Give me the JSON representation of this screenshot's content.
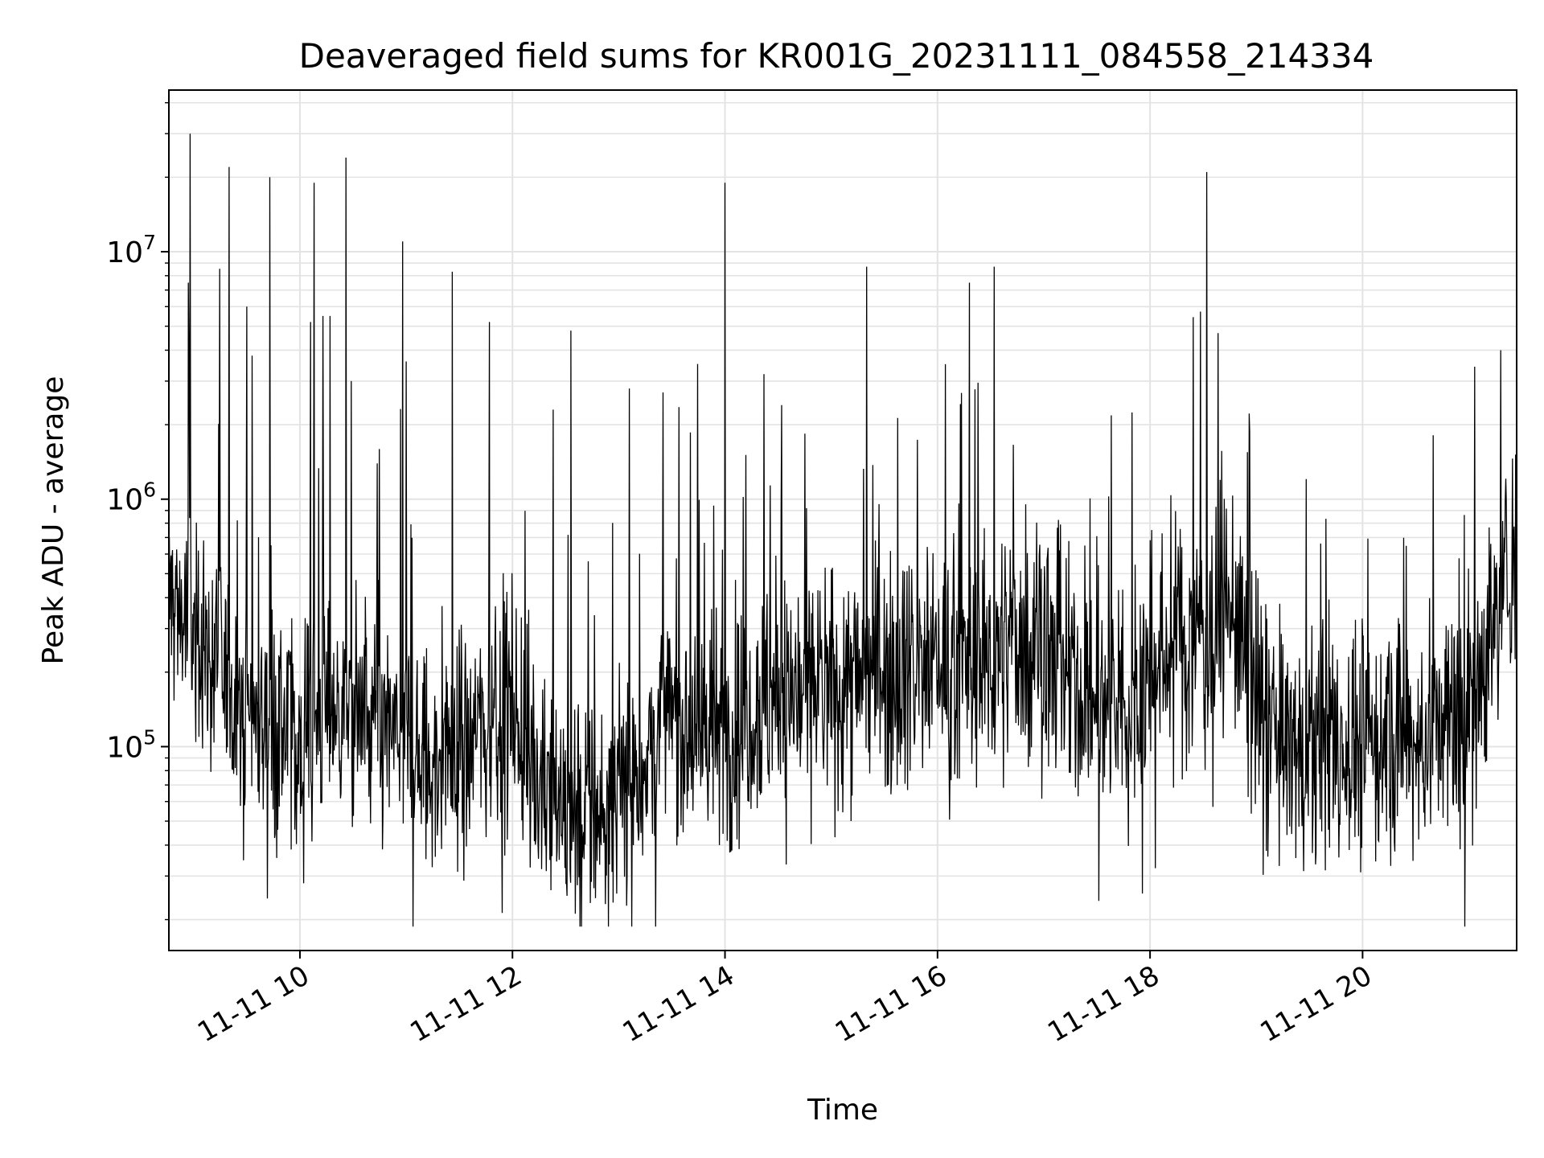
{
  "chart_data": {
    "type": "line",
    "title": "Deaveraged field sums for KR001G_20231111_084558_214334",
    "xlabel": "Time",
    "ylabel": "Peak ADU - average",
    "yscale": "log",
    "ylim": [
      15000,
      45000000
    ],
    "xlim": [
      "2023-11-11 08:46",
      "2023-11-11 21:27"
    ],
    "grid": true,
    "line_color": "#000000",
    "x_ticks": [
      {
        "value": "2023-11-11 10:00",
        "label": "11-11 10"
      },
      {
        "value": "2023-11-11 12:00",
        "label": "11-11 12"
      },
      {
        "value": "2023-11-11 14:00",
        "label": "11-11 14"
      },
      {
        "value": "2023-11-11 16:00",
        "label": "11-11 16"
      },
      {
        "value": "2023-11-11 18:00",
        "label": "11-11 18"
      },
      {
        "value": "2023-11-11 20:00",
        "label": "11-11 20"
      }
    ],
    "y_ticks": [
      {
        "value": 100000,
        "base": "10",
        "exp": "5"
      },
      {
        "value": 1000000,
        "base": "10",
        "exp": "6"
      },
      {
        "value": 10000000,
        "base": "10",
        "exp": "7"
      }
    ],
    "series": [
      {
        "x": [
          "2023-11-11 08:46",
          "2023-11-11 09:00",
          "2023-11-11 09:15",
          "2023-11-11 09:30",
          "2023-11-11 09:45",
          "2023-11-11 10:00",
          "2023-11-11 10:15",
          "2023-11-11 10:30",
          "2023-11-11 10:45",
          "2023-11-11 11:00",
          "2023-11-11 11:15",
          "2023-11-11 11:30",
          "2023-11-11 11:45",
          "2023-11-11 12:00",
          "2023-11-11 12:15",
          "2023-11-11 12:30",
          "2023-11-11 12:45",
          "2023-11-11 13:00",
          "2023-11-11 13:15",
          "2023-11-11 13:30",
          "2023-11-11 13:45",
          "2023-11-11 14:00",
          "2023-11-11 14:15",
          "2023-11-11 14:30",
          "2023-11-11 14:45",
          "2023-11-11 15:00",
          "2023-11-11 15:15",
          "2023-11-11 15:30",
          "2023-11-11 15:45",
          "2023-11-11 16:00",
          "2023-11-11 16:15",
          "2023-11-11 16:30",
          "2023-11-11 16:45",
          "2023-11-11 17:00",
          "2023-11-11 17:15",
          "2023-11-11 17:30",
          "2023-11-11 17:45",
          "2023-11-11 18:00",
          "2023-11-11 18:15",
          "2023-11-11 18:30",
          "2023-11-11 18:45",
          "2023-11-11 19:00",
          "2023-11-11 19:15",
          "2023-11-11 19:30",
          "2023-11-11 19:45",
          "2023-11-11 20:00",
          "2023-11-11 20:15",
          "2023-11-11 20:30",
          "2023-11-11 20:45",
          "2023-11-11 21:00",
          "2023-11-11 21:15",
          "2023-11-11 21:27"
        ],
        "y": [
          400000,
          300000,
          200000,
          140000,
          120000,
          110000,
          150000,
          140000,
          120000,
          100000,
          80000,
          100000,
          130000,
          150000,
          80000,
          60000,
          50000,
          60000,
          90000,
          130000,
          120000,
          110000,
          150000,
          160000,
          170000,
          180000,
          190000,
          210000,
          220000,
          230000,
          200000,
          220000,
          260000,
          300000,
          170000,
          150000,
          130000,
          200000,
          260000,
          300000,
          380000,
          150000,
          100000,
          90000,
          100000,
          100000,
          110000,
          100000,
          120000,
          130000,
          350000,
          650000
        ]
      }
    ],
    "spikes": [
      {
        "x": "2023-11-11 08:58",
        "y": 30000000
      },
      {
        "x": "2023-11-11 08:57",
        "y": 7500000
      },
      {
        "x": "2023-11-11 09:20",
        "y": 22000000
      },
      {
        "x": "2023-11-11 09:30",
        "y": 6000000
      },
      {
        "x": "2023-11-11 09:33",
        "y": 3800000
      },
      {
        "x": "2023-11-11 09:43",
        "y": 20000000
      },
      {
        "x": "2023-11-11 10:06",
        "y": 5200000
      },
      {
        "x": "2023-11-11 10:08",
        "y": 19000000
      },
      {
        "x": "2023-11-11 10:13",
        "y": 5500000
      },
      {
        "x": "2023-11-11 10:17",
        "y": 5500000
      },
      {
        "x": "2023-11-11 10:26",
        "y": 24000000
      },
      {
        "x": "2023-11-11 10:29",
        "y": 3000000
      },
      {
        "x": "2023-11-11 10:58",
        "y": 11000000
      },
      {
        "x": "2023-11-11 11:00",
        "y": 3600000
      },
      {
        "x": "2023-11-11 11:26",
        "y": 8300000
      },
      {
        "x": "2023-11-11 11:47",
        "y": 5200000
      },
      {
        "x": "2023-11-11 12:23",
        "y": 2300000
      },
      {
        "x": "2023-11-11 12:33",
        "y": 4800000
      },
      {
        "x": "2023-11-11 13:06",
        "y": 2800000
      },
      {
        "x": "2023-11-11 13:25",
        "y": 2700000
      },
      {
        "x": "2023-11-11 14:00",
        "y": 19000000
      },
      {
        "x": "2023-11-11 14:22",
        "y": 3200000
      },
      {
        "x": "2023-11-11 14:32",
        "y": 2400000
      },
      {
        "x": "2023-11-11 15:20",
        "y": 8700000
      },
      {
        "x": "2023-11-11 16:18",
        "y": 7500000
      },
      {
        "x": "2023-11-11 16:32",
        "y": 8700000
      },
      {
        "x": "2023-11-11 18:32",
        "y": 21000000
      },
      {
        "x": "2023-11-11 18:55",
        "y": 1550000
      },
      {
        "x": "2023-11-11 21:18",
        "y": 4000000
      }
    ]
  }
}
